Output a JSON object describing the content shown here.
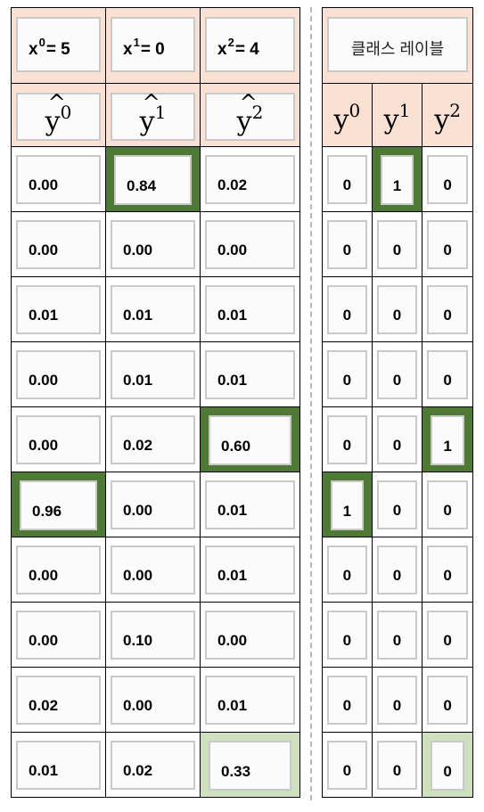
{
  "inputs": [
    {
      "base": "x",
      "sup": "0",
      "value": "= 5"
    },
    {
      "base": "x",
      "sup": "1",
      "value": "= 0"
    },
    {
      "base": "x",
      "sup": "2",
      "value": "= 4"
    }
  ],
  "class_label_title": "클래스 레이블",
  "pred_headers": [
    {
      "base": "y",
      "sup": "0"
    },
    {
      "base": "y",
      "sup": "1"
    },
    {
      "base": "y",
      "sup": "2"
    }
  ],
  "label_headers": [
    {
      "base": "y",
      "sup": "0"
    },
    {
      "base": "y",
      "sup": "1"
    },
    {
      "base": "y",
      "sup": "2"
    }
  ],
  "predictions": [
    [
      "0.00",
      "0.84",
      "0.02"
    ],
    [
      "0.00",
      "0.00",
      "0.00"
    ],
    [
      "0.01",
      "0.01",
      "0.01"
    ],
    [
      "0.00",
      "0.01",
      "0.01"
    ],
    [
      "0.00",
      "0.02",
      "0.60"
    ],
    [
      "0.96",
      "0.00",
      "0.01"
    ],
    [
      "0.00",
      "0.00",
      "0.01"
    ],
    [
      "0.00",
      "0.10",
      "0.00"
    ],
    [
      "0.02",
      "0.00",
      "0.01"
    ],
    [
      "0.01",
      "0.02",
      "0.33"
    ]
  ],
  "labels": [
    [
      "0",
      "1",
      "0"
    ],
    [
      "0",
      "0",
      "0"
    ],
    [
      "0",
      "0",
      "0"
    ],
    [
      "0",
      "0",
      "0"
    ],
    [
      "0",
      "0",
      "1"
    ],
    [
      "1",
      "0",
      "0"
    ],
    [
      "0",
      "0",
      "0"
    ],
    [
      "0",
      "0",
      "0"
    ],
    [
      "0",
      "0",
      "0"
    ],
    [
      "0",
      "0",
      "0"
    ]
  ],
  "highlights": {
    "predictions": [
      {
        "row": 0,
        "col": 1,
        "style": "dark"
      },
      {
        "row": 4,
        "col": 2,
        "style": "dark"
      },
      {
        "row": 5,
        "col": 0,
        "style": "dark"
      },
      {
        "row": 9,
        "col": 2,
        "style": "light"
      }
    ],
    "labels": [
      {
        "row": 0,
        "col": 1,
        "style": "dark"
      },
      {
        "row": 4,
        "col": 2,
        "style": "dark"
      },
      {
        "row": 5,
        "col": 0,
        "style": "dark"
      },
      {
        "row": 9,
        "col": 2,
        "style": "light"
      }
    ]
  },
  "colors": {
    "header_bg": "#fbe0d4",
    "highlight_dark": "#4f7a35",
    "highlight_light": "#cfe0bf"
  }
}
